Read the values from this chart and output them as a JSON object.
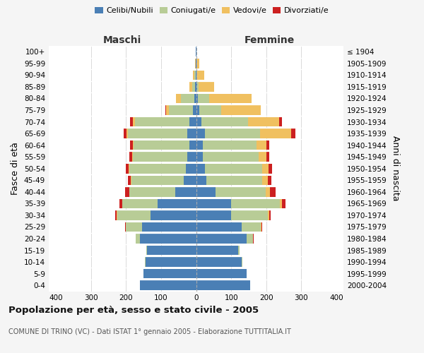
{
  "age_groups": [
    "0-4",
    "5-9",
    "10-14",
    "15-19",
    "20-24",
    "25-29",
    "30-34",
    "35-39",
    "40-44",
    "45-49",
    "50-54",
    "55-59",
    "60-64",
    "65-69",
    "70-74",
    "75-79",
    "80-84",
    "85-89",
    "90-94",
    "95-99",
    "100+"
  ],
  "birth_years": [
    "2000-2004",
    "1995-1999",
    "1990-1994",
    "1985-1989",
    "1980-1984",
    "1975-1979",
    "1970-1974",
    "1965-1969",
    "1960-1964",
    "1955-1959",
    "1950-1954",
    "1945-1949",
    "1940-1944",
    "1935-1939",
    "1930-1934",
    "1925-1929",
    "1920-1924",
    "1915-1919",
    "1910-1914",
    "1905-1909",
    "≤ 1904"
  ],
  "male_celibe": [
    160,
    150,
    145,
    140,
    160,
    155,
    130,
    110,
    60,
    35,
    30,
    25,
    20,
    25,
    20,
    10,
    5,
    3,
    2,
    1,
    1
  ],
  "male_coniugato": [
    0,
    0,
    1,
    2,
    12,
    45,
    95,
    100,
    130,
    150,
    160,
    155,
    158,
    170,
    155,
    68,
    38,
    8,
    3,
    1,
    0
  ],
  "male_vedovo": [
    0,
    0,
    0,
    0,
    0,
    1,
    1,
    1,
    1,
    1,
    2,
    2,
    3,
    4,
    5,
    8,
    15,
    8,
    4,
    1,
    0
  ],
  "male_divorziato": [
    0,
    0,
    0,
    0,
    1,
    2,
    5,
    8,
    12,
    8,
    8,
    8,
    8,
    8,
    8,
    1,
    0,
    0,
    0,
    0,
    0
  ],
  "female_celibe": [
    155,
    145,
    130,
    120,
    145,
    130,
    100,
    100,
    55,
    30,
    25,
    20,
    20,
    25,
    15,
    10,
    5,
    3,
    2,
    1,
    1
  ],
  "female_coniugata": [
    0,
    0,
    1,
    3,
    18,
    55,
    105,
    138,
    143,
    158,
    163,
    158,
    153,
    158,
    133,
    62,
    33,
    5,
    2,
    0,
    0
  ],
  "female_vedova": [
    0,
    0,
    0,
    0,
    0,
    1,
    3,
    6,
    13,
    16,
    18,
    23,
    28,
    88,
    88,
    112,
    120,
    44,
    20,
    8,
    1
  ],
  "female_divorziata": [
    0,
    0,
    0,
    0,
    1,
    2,
    5,
    10,
    15,
    10,
    10,
    8,
    8,
    13,
    8,
    0,
    0,
    0,
    0,
    0,
    0
  ],
  "colors": {
    "celibe": "#4a7fb5",
    "coniugato": "#b8cc96",
    "vedovo": "#f0c060",
    "divorziato": "#cc2020"
  },
  "xlim": 420,
  "title": "Popolazione per età, sesso e stato civile - 2005",
  "subtitle": "COMUNE DI TRINO (VC) - Dati ISTAT 1° gennaio 2005 - Elaborazione TUTTITALIA.IT",
  "ylabel_left": "Fasce di età",
  "ylabel_right": "Anni di nascita",
  "xlabel_left": "Maschi",
  "xlabel_right": "Femmine",
  "bg_color": "#f5f5f5",
  "plot_bg_color": "#ffffff"
}
